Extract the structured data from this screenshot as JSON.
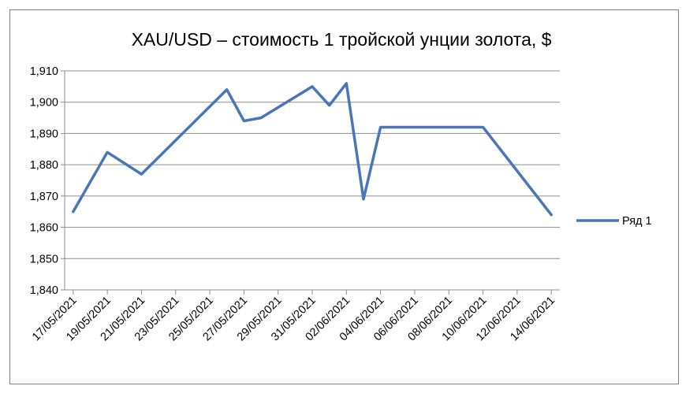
{
  "chart_data": {
    "type": "line",
    "title": "XAU/USD – стоимость 1 тройской унции золота, $",
    "xlabel": "",
    "ylabel": "",
    "ylim": [
      1840,
      1910
    ],
    "yticks": [
      1840,
      1850,
      1860,
      1870,
      1880,
      1890,
      1900,
      1910
    ],
    "ytick_labels": [
      "1,840",
      "1,850",
      "1,860",
      "1,870",
      "1,880",
      "1,890",
      "1,900",
      "1,910"
    ],
    "xtick_labels": [
      "17/05/2021",
      "19/05/2021",
      "21/05/2021",
      "23/05/2021",
      "25/05/2021",
      "27/05/2021",
      "29/05/2021",
      "31/05/2021",
      "02/06/2021",
      "04/06/2021",
      "06/06/2021",
      "08/06/2021",
      "10/06/2021",
      "12/06/2021",
      "14/06/2021"
    ],
    "x": [
      "17/05/2021",
      "19/05/2021",
      "21/05/2021",
      "26/05/2021",
      "27/05/2021",
      "28/05/2021",
      "31/05/2021",
      "01/06/2021",
      "02/06/2021",
      "03/06/2021",
      "04/06/2021",
      "10/06/2021",
      "14/06/2021"
    ],
    "series": [
      {
        "name": "Ряд 1",
        "color": "#4a76b8",
        "values": [
          1865,
          1884,
          1877,
          1904,
          1894,
          1895,
          1905,
          1899,
          1906,
          1869,
          1892,
          1892,
          1864
        ]
      }
    ],
    "grid": true,
    "legend_position": "right"
  }
}
